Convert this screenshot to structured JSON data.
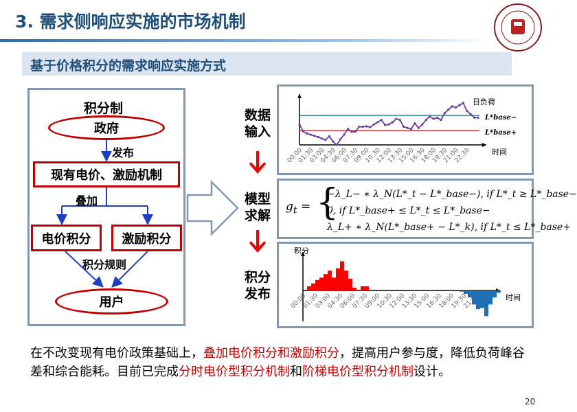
{
  "header": {
    "title": "3. 需求侧响应实施的市场机制",
    "subtitle": "基于价格积分的需求响应实施方式"
  },
  "flow": {
    "heading": "积分制",
    "government": "政府",
    "publish": "发布",
    "existing": "现有电价、激励机制",
    "overlay": "叠加",
    "price_points": "电价积分",
    "incentive_points": "激励积分",
    "rules": "积分规则",
    "user": "用户"
  },
  "steps": {
    "input": "数据输入",
    "solve": "模型求解",
    "release": "积分发布"
  },
  "formula": {
    "lhs": "g",
    "lhs_sub": "t",
    "case1": "−λ_L− ∗ λ_N(L*_t − L*_base−), if  L*_t ≥ L*_base−",
    "case2": "0,        if L*_base+ ≤ L*_t ≤ L*_base−",
    "case3": "λ_L+ ∗ λ_N(L*_base+ − L*_k), if  L*_t ≤ L*_base+"
  },
  "chart_data": [
    {
      "type": "line",
      "xlabel": "时间",
      "series_label": "日负荷",
      "ref_labels": [
        "L*base−",
        "L*base+"
      ],
      "x_ticks": [
        "00:00",
        "01:30",
        "03:00",
        "04:30",
        "06:00",
        "07:30",
        "09:00",
        "10:30",
        "12:00",
        "13:30",
        "15:00",
        "16:30",
        "18:00",
        "19:30",
        "21:00",
        "22:30"
      ],
      "values": [
        90,
        60,
        50,
        45,
        40,
        35,
        28,
        22,
        38,
        15,
        0,
        25,
        45,
        70,
        58,
        58,
        80,
        80,
        82,
        78,
        90,
        100,
        110,
        88,
        90,
        100,
        115,
        110,
        80,
        75,
        70,
        95,
        75,
        90,
        110,
        125,
        115,
        120,
        110,
        140,
        155,
        170,
        165,
        175,
        185,
        150,
        135,
        120,
        120
      ],
      "ref_lines": [
        {
          "name": "L*base−",
          "value": 130,
          "color": "#2e8b9a"
        },
        {
          "name": "L*base+",
          "value": 63,
          "color": "#e0303a"
        }
      ],
      "line_color": "#6a3d9a"
    },
    {
      "type": "bar",
      "ylabel": "积分",
      "xlabel": "时间",
      "x_ticks": [
        "00:00",
        "01:30",
        "03:00",
        "04:30",
        "06:00",
        "07:30",
        "09:00",
        "10:30",
        "12:00",
        "13:30",
        "15:00",
        "16:30",
        "18:00",
        "19:30",
        "21:00",
        "22:30"
      ],
      "values": [
        0,
        18,
        30,
        45,
        55,
        70,
        85,
        55,
        95,
        125,
        85,
        50,
        12,
        0,
        18,
        18,
        0,
        0,
        0,
        0,
        0,
        0,
        0,
        0,
        0,
        0,
        0,
        0,
        0,
        0,
        0,
        0,
        0,
        0,
        0,
        0,
        0,
        0,
        -5,
        -15,
        -30,
        -60,
        -80,
        -75,
        -110,
        -60,
        -30,
        -10
      ],
      "positive_color": "#ff0000",
      "negative_color": "#1f6fb5"
    }
  ],
  "bottom": {
    "p1": "在不改变现有电价政策基础上，",
    "h1": "叠加电价积分和激励积分",
    "p2": "，提高用户参与度，降低负荷峰谷差和综合能耗。目前已完成",
    "h2": "分时电价型积分机制",
    "p3": "和",
    "h3": "阶梯电价型积分机制",
    "p4": "设计。"
  },
  "page_number": "20",
  "colors": {
    "title": "#1f4e79",
    "accent_red": "#c00000",
    "band": "#dbe5f1"
  }
}
